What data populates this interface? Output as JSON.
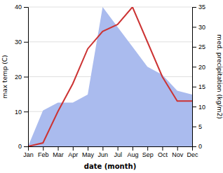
{
  "chart_data": {
    "type": "line",
    "categories": [
      "Jan",
      "Feb",
      "Mar",
      "Apr",
      "May",
      "Jun",
      "Jul",
      "Aug",
      "Sep",
      "Oct",
      "Nov",
      "Dec"
    ],
    "series": [
      {
        "type": "area",
        "axis": "y2",
        "color": "#aabbee",
        "values": [
          0,
          9,
          11,
          11,
          13,
          35,
          30,
          25,
          20,
          18,
          14,
          13
        ]
      },
      {
        "type": "line",
        "color": "#cc3333",
        "values": [
          0,
          1,
          10,
          18,
          28,
          33,
          35,
          40,
          30,
          20,
          13,
          13
        ]
      }
    ],
    "xlabel": "date (month)",
    "ylabel": "max temp (C)",
    "y2label": "med. precipitation (kg/m2)",
    "ylim": [
      0,
      40
    ],
    "yticks": [
      0,
      10,
      20,
      30,
      40
    ],
    "y2lim": [
      0,
      35
    ],
    "y2ticks": [
      0,
      5,
      10,
      15,
      20,
      25,
      30,
      35
    ],
    "grid": true
  }
}
